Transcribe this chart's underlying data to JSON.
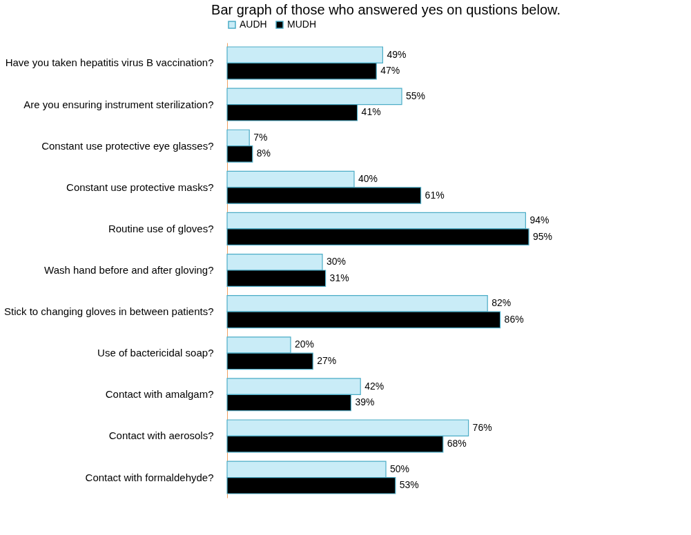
{
  "chart_data": {
    "type": "bar",
    "orientation": "horizontal",
    "title": "Bar graph of those who answered  yes on qustions below.",
    "legend": "top",
    "categories": [
      "Have you taken hepatitis virus B vaccination?",
      "Are you ensuring instrument sterilization?",
      "Constant use protective eye glasses?",
      "Constant use protective masks?",
      "Routine use of gloves?",
      "Wash hand before and after gloving?",
      "Stick to changing gloves in between patients?",
      "Use of bactericidal soap?",
      "Contact with amalgam?",
      "Contact with aerosols?",
      "Contact with formaldehyde?"
    ],
    "series": [
      {
        "name": "AUDH",
        "color": "#c9ecf7",
        "values": [
          49,
          55,
          7,
          40,
          94,
          30,
          82,
          20,
          42,
          76,
          50
        ],
        "value_labels": [
          "49%",
          "55%",
          "7%",
          "40%",
          "94%",
          "30%",
          "82%",
          "20%",
          "42%",
          "76%",
          "50%"
        ]
      },
      {
        "name": "MUDH",
        "color": "#000000",
        "values": [
          47,
          41,
          8,
          61,
          95,
          31,
          86,
          27,
          39,
          68,
          53
        ],
        "value_labels": [
          "47%",
          "41%",
          "8%",
          "61%",
          "95%",
          "31%",
          "86%",
          "27%",
          "39%",
          "68%",
          "53%"
        ]
      }
    ]
  }
}
